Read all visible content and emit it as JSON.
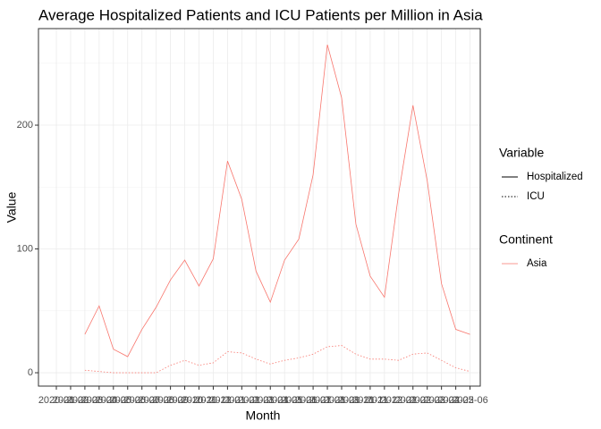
{
  "chart_data": {
    "type": "line",
    "title": "Average Hospitalized Patients and ICU Patients per Million in Asia",
    "x_label": "Month",
    "y_label": "Value",
    "categories": [
      "2020-01",
      "2020-02",
      "2020-03",
      "2020-04",
      "2020-05",
      "2020-06",
      "2020-07",
      "2020-08",
      "2020-09",
      "2020-10",
      "2020-11",
      "2020-12",
      "2021-01",
      "2021-02",
      "2021-03",
      "2021-04",
      "2021-05",
      "2021-06",
      "2021-07",
      "2021-08",
      "2021-09",
      "2021-10",
      "2021-11",
      "2021-12",
      "2022-01",
      "2022-02",
      "2022-03",
      "2022-04",
      "2022-05",
      "2022-06"
    ],
    "series": [
      {
        "name": "Hospitalized",
        "dash": "solid",
        "color": "#F8766D",
        "values": [
          null,
          null,
          31,
          54,
          19,
          13,
          35,
          53,
          75,
          91,
          70,
          92,
          171,
          140,
          82,
          57,
          91,
          108,
          160,
          265,
          222,
          120,
          78,
          61,
          145,
          216,
          155,
          72,
          35,
          31
        ]
      },
      {
        "name": "ICU",
        "dash": "dotted",
        "color": "#F8766D",
        "values": [
          null,
          null,
          2,
          1,
          0,
          0,
          0,
          0,
          6,
          10,
          6,
          8,
          17,
          16,
          11,
          7,
          10,
          12,
          15,
          21,
          22,
          15,
          11,
          11,
          10,
          15,
          16,
          10,
          4,
          1
        ]
      }
    ],
    "legend_title": "Variable",
    "group_legend_title": "Continent",
    "group": "Asia",
    "ylim": [
      -10.8,
      278
    ],
    "yticks": [
      0,
      100,
      200
    ],
    "yminor": [
      50,
      150,
      250
    ],
    "grid": true
  }
}
